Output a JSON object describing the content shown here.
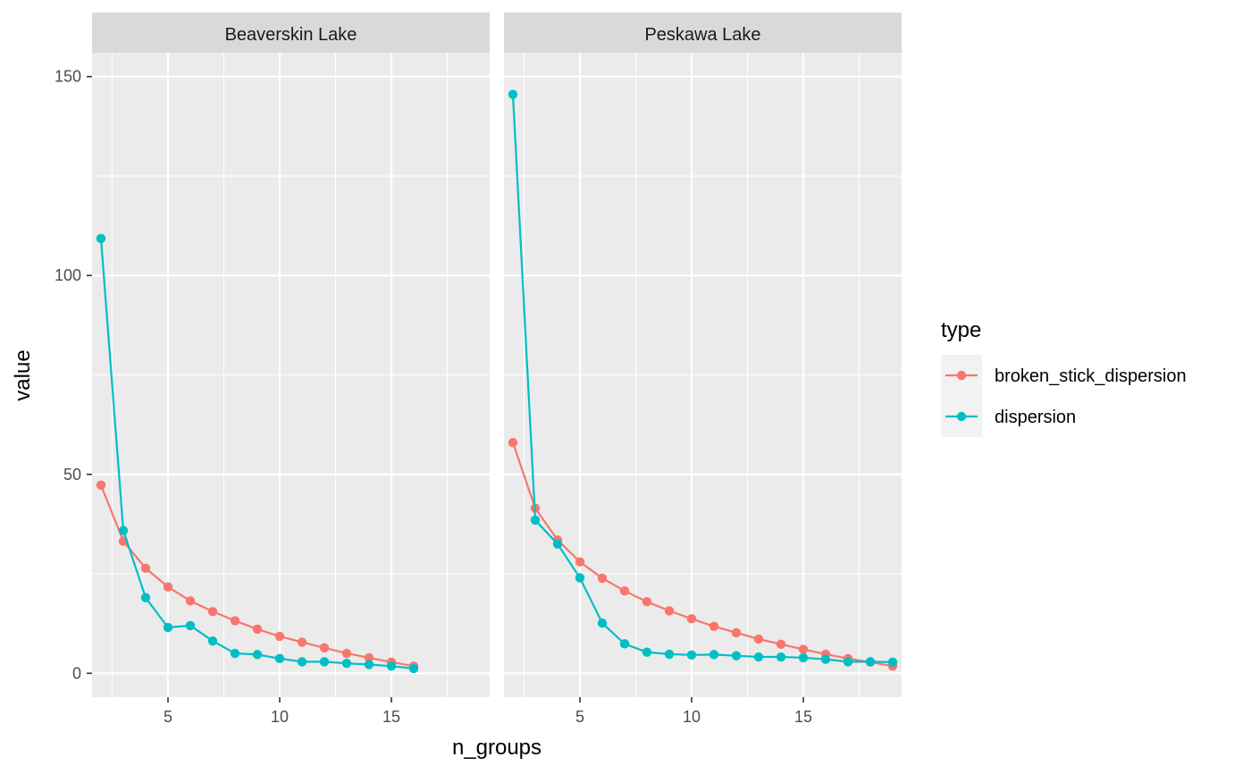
{
  "chart_data": {
    "type": "line",
    "xlabel": "n_groups",
    "ylabel": "value",
    "xlim": [
      1.6,
      19.4
    ],
    "ylim": [
      -6,
      156
    ],
    "x_ticks": [
      5,
      10,
      15
    ],
    "x_minor_ticks": [
      2.5,
      7.5,
      12.5,
      17.5
    ],
    "y_ticks": [
      0,
      50,
      100,
      150
    ],
    "y_minor_ticks": [
      25,
      75,
      125
    ],
    "legend": {
      "title": "type",
      "position": "right",
      "entries": [
        "broken_stick_dispersion",
        "dispersion"
      ]
    },
    "colors": {
      "broken_stick_dispersion": "#F8766D",
      "dispersion": "#00BFC4",
      "panel_bg": "#EBEBEB",
      "strip_bg": "#D9D9D9",
      "grid": "#FFFFFF"
    },
    "panels": [
      {
        "title": "Beaverskin Lake",
        "series": [
          {
            "name": "broken_stick_dispersion",
            "x": [
              2,
              3,
              4,
              5,
              6,
              7,
              8,
              9,
              10,
              11,
              12,
              13,
              14,
              15,
              16
            ],
            "y": [
              47.3,
              33.2,
              26.4,
              21.7,
              18.2,
              15.5,
              13.2,
              11.1,
              9.3,
              7.8,
              6.4,
              5.0,
              3.9,
              2.8,
              1.8
            ]
          },
          {
            "name": "dispersion",
            "x": [
              2,
              3,
              4,
              5,
              6,
              7,
              8,
              9,
              10,
              11,
              12,
              13,
              14,
              15,
              16
            ],
            "y": [
              109.3,
              35.9,
              19.0,
              11.5,
              12.0,
              8.1,
              5.0,
              4.7,
              3.7,
              2.9,
              2.9,
              2.5,
              2.2,
              1.8,
              1.2
            ]
          }
        ]
      },
      {
        "title": "Peskawa Lake",
        "series": [
          {
            "name": "broken_stick_dispersion",
            "x": [
              2,
              3,
              4,
              5,
              6,
              7,
              8,
              9,
              10,
              11,
              12,
              13,
              14,
              15,
              16,
              17,
              18,
              19
            ],
            "y": [
              58.0,
              41.5,
              33.5,
              28.0,
              23.9,
              20.7,
              18.0,
              15.7,
              13.7,
              11.8,
              10.2,
              8.6,
              7.3,
              6.0,
              4.8,
              3.7,
              2.8,
              1.8
            ]
          },
          {
            "name": "dispersion",
            "x": [
              2,
              3,
              4,
              5,
              6,
              7,
              8,
              9,
              10,
              11,
              12,
              13,
              14,
              15,
              16,
              17,
              18,
              19
            ],
            "y": [
              145.5,
              38.5,
              32.5,
              24.0,
              12.6,
              7.4,
              5.3,
              4.8,
              4.6,
              4.7,
              4.4,
              4.1,
              4.1,
              3.9,
              3.5,
              2.9,
              2.9,
              2.8
            ]
          }
        ]
      }
    ]
  }
}
